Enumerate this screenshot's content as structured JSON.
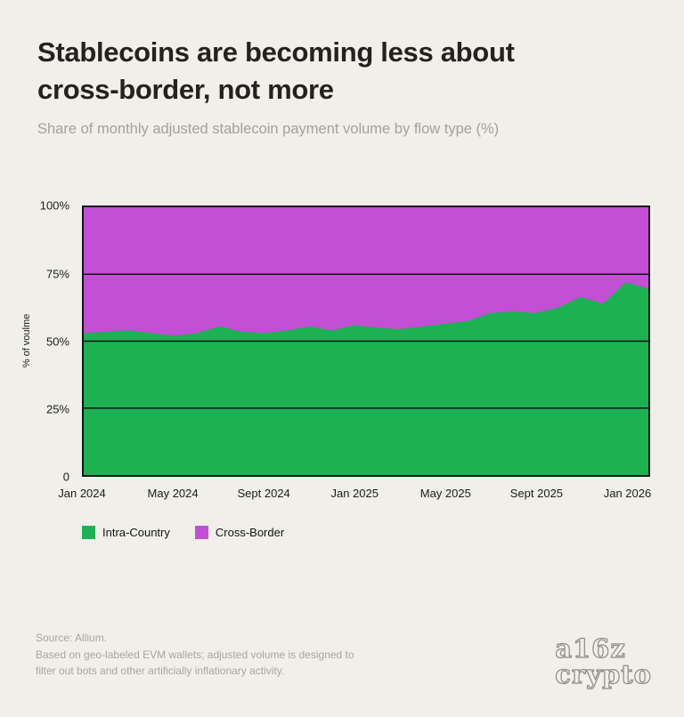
{
  "header": {
    "title_line1": "Stablecoins are becoming less about",
    "title_line2": "cross-border, not more",
    "subtitle": "Share of monthly adjusted stablecoin payment volume by flow type (%)"
  },
  "chart_data": {
    "type": "area",
    "stacked": true,
    "title": "Stablecoins are becoming less about cross-border, not more",
    "subtitle": "Share of monthly adjusted stablecoin payment volume by flow type (%)",
    "ylabel": "% of voulme",
    "ylim": [
      0,
      100
    ],
    "grid": true,
    "gridlines": [
      25,
      50,
      75
    ],
    "x": [
      "Jan 2024",
      "Feb 2024",
      "Mar 2024",
      "Apr 2024",
      "May 2024",
      "Jun 2024",
      "Jul 2024",
      "Aug 2024",
      "Sep 2024",
      "Oct 2024",
      "Nov 2024",
      "Dec 2024",
      "Jan 2025",
      "Feb 2025",
      "Mar 2025",
      "Apr 2025",
      "May 2025",
      "Jun 2025",
      "Jul 2025",
      "Aug 2025",
      "Sep 2025",
      "Oct 2025",
      "Nov 2025",
      "Dec 2025",
      "Jan 2026",
      "Feb 2026"
    ],
    "series": [
      {
        "name": "Intra-Country",
        "color": "#1cb152",
        "values": [
          53,
          53.5,
          54,
          53,
          52,
          53,
          55.5,
          53.5,
          53,
          54,
          55.5,
          54,
          56,
          55,
          54.5,
          55.5,
          56.5,
          57.5,
          60.5,
          61,
          60.5,
          62.5,
          66.5,
          64,
          72,
          69.5
        ]
      },
      {
        "name": "Cross-Border",
        "color": "#c24fd4",
        "values": [
          47,
          46.5,
          46,
          47,
          48,
          47,
          44.5,
          46.5,
          47,
          46,
          44.5,
          46,
          44,
          45,
          45.5,
          44.5,
          43.5,
          42.5,
          39.5,
          39,
          39.5,
          37.5,
          33.5,
          36,
          28,
          30.5
        ]
      }
    ],
    "yticks": [
      {
        "label": "0",
        "value": 0
      },
      {
        "label": "25%",
        "value": 25
      },
      {
        "label": "50%",
        "value": 50
      },
      {
        "label": "75%",
        "value": 75
      },
      {
        "label": "100%",
        "value": 100
      }
    ],
    "xticks": [
      {
        "label": "Jan 2024",
        "index": 0
      },
      {
        "label": "May 2024",
        "index": 4
      },
      {
        "label": "Sept 2024",
        "index": 8
      },
      {
        "label": "Jan 2025",
        "index": 12
      },
      {
        "label": "May 2025",
        "index": 16
      },
      {
        "label": "Sept 2025",
        "index": 20
      },
      {
        "label": "Jan 2026",
        "index": 24
      }
    ]
  },
  "legend": {
    "items": [
      {
        "label": "Intra-Country",
        "color": "#1cb152"
      },
      {
        "label": "Cross-Border",
        "color": "#c24fd4"
      }
    ]
  },
  "footer": {
    "source": "Source: Allium.",
    "note_line1": "Based on geo-labeled EVM wallets; adjusted volume is designed to",
    "note_line2": "filter out bots and other artificially inflationary activity."
  },
  "logo": {
    "line1": "a16z",
    "line2": "crypto"
  }
}
